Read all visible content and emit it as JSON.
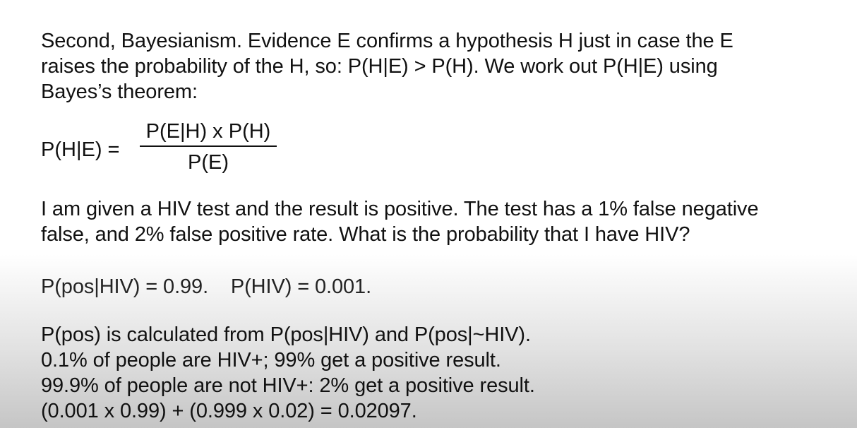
{
  "intro": {
    "line1": "Second, Bayesianism. Evidence E confirms a hypothesis H just in case the E",
    "line2": "raises the probability of the H, so: P(H|E) > P(H). We work out P(H|E) using",
    "line3": "Bayes’s theorem:"
  },
  "formula": {
    "lhs": "P(H|E) =",
    "numerator": "P(E|H) x P(H)",
    "denominator": "P(E)"
  },
  "problem": {
    "line1": "I am given a HIV test and the result is positive. The test has a 1% false negative",
    "line2": "false, and 2% false positive rate. What is the probability that I have HIV?"
  },
  "givens": {
    "line1": "P(pos|HIV) = 0.99.    P(HIV) = 0.001."
  },
  "calculation": {
    "line1": "P(pos) is calculated from P(pos|HIV) and P(pos|~HIV).",
    "line2": "0.1% of people are HIV+; 99% get a positive result.",
    "line3": "99.9% of people are not HIV+: 2% get a positive result.",
    "line4": "(0.001 x 0.99) + (0.999 x 0.02) = 0.02097."
  }
}
